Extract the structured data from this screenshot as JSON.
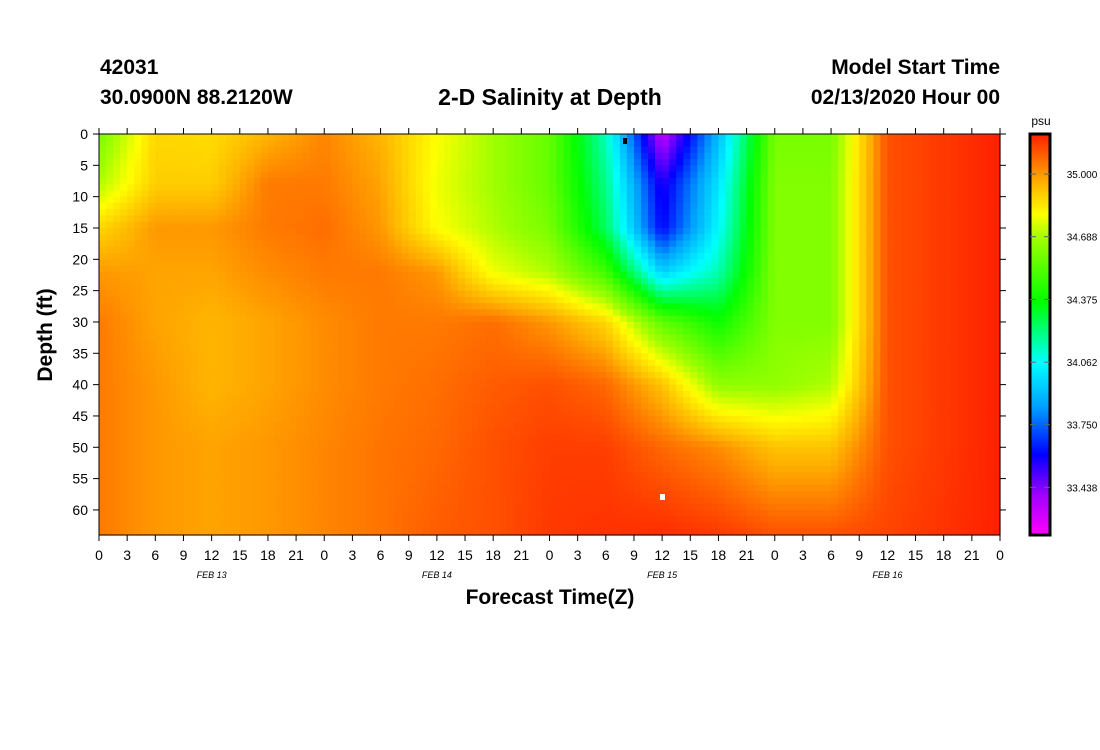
{
  "header": {
    "station_id": "42031",
    "coords": "30.0900N 88.2120W",
    "title": "2-D Salinity at Depth",
    "model_label": "Model Start Time",
    "model_time": "02/13/2020 Hour 00"
  },
  "chart_data": {
    "type": "heatmap",
    "title": "2-D Salinity at Depth",
    "xlabel": "Forecast Time(Z)",
    "ylabel": "Depth (ft)",
    "x_ticks": [
      "0",
      "3",
      "6",
      "9",
      "12",
      "15",
      "18",
      "21",
      "0",
      "3",
      "6",
      "9",
      "12",
      "15",
      "18",
      "21",
      "0",
      "3",
      "6",
      "9",
      "12",
      "15",
      "18",
      "21",
      "0",
      "3",
      "6",
      "9",
      "12",
      "15",
      "18",
      "21",
      "0"
    ],
    "date_labels": [
      "FEB 13",
      "FEB 14",
      "FEB 15",
      "FEB 16"
    ],
    "x_range_hours": [
      0,
      96
    ],
    "y_ticks": [
      0,
      5,
      10,
      15,
      20,
      25,
      30,
      35,
      40,
      45,
      50,
      55,
      60
    ],
    "ylim": [
      0,
      64
    ],
    "colorbar": {
      "unit": "psu",
      "labels": [
        "35.000",
        "34.688",
        "34.375",
        "34.062",
        "33.750",
        "33.438"
      ],
      "values": [
        35.0,
        34.688,
        34.375,
        34.062,
        33.75,
        33.438
      ],
      "range": [
        33.2,
        35.2
      ]
    },
    "grid_hours": [
      0,
      6,
      12,
      18,
      24,
      30,
      36,
      42,
      48,
      54,
      60,
      66,
      72,
      78,
      84,
      90,
      96
    ],
    "grid_depths": [
      0,
      8,
      15,
      22,
      30,
      40,
      50,
      64
    ],
    "salinity_grid": [
      [
        34.6,
        34.88,
        34.87,
        34.95,
        35.03,
        34.95,
        34.8,
        34.68,
        34.56,
        34.14,
        33.33,
        33.9,
        34.6,
        34.6,
        35.12,
        35.16,
        35.2
      ],
      [
        34.7,
        34.9,
        34.9,
        35.05,
        35.05,
        34.98,
        34.78,
        34.68,
        34.56,
        34.2,
        33.55,
        34.0,
        34.62,
        34.62,
        35.12,
        35.16,
        35.2
      ],
      [
        34.88,
        35.0,
        35.0,
        35.05,
        35.07,
        35.0,
        34.8,
        34.7,
        34.6,
        34.25,
        33.6,
        34.05,
        34.62,
        34.62,
        35.12,
        35.16,
        35.2
      ],
      [
        35.0,
        34.98,
        34.98,
        35.02,
        35.05,
        35.05,
        35.0,
        34.78,
        34.7,
        34.48,
        33.95,
        34.15,
        34.62,
        34.62,
        35.12,
        35.16,
        35.2
      ],
      [
        35.05,
        34.98,
        34.95,
        34.98,
        35.02,
        35.05,
        35.05,
        35.07,
        35.0,
        34.88,
        34.55,
        34.38,
        34.62,
        34.62,
        35.12,
        35.16,
        35.2
      ],
      [
        35.05,
        35.0,
        34.95,
        34.98,
        35.02,
        35.05,
        35.07,
        35.1,
        35.12,
        35.08,
        34.92,
        34.65,
        34.65,
        34.7,
        35.12,
        35.16,
        35.2
      ],
      [
        35.05,
        35.0,
        34.98,
        35.0,
        35.03,
        35.06,
        35.08,
        35.12,
        35.15,
        35.15,
        35.08,
        35.02,
        34.92,
        34.92,
        35.12,
        35.16,
        35.2
      ],
      [
        35.05,
        35.0,
        34.98,
        35.0,
        35.03,
        35.06,
        35.1,
        35.12,
        35.16,
        35.17,
        35.18,
        35.16,
        35.12,
        35.12,
        35.14,
        35.17,
        35.2
      ]
    ]
  }
}
